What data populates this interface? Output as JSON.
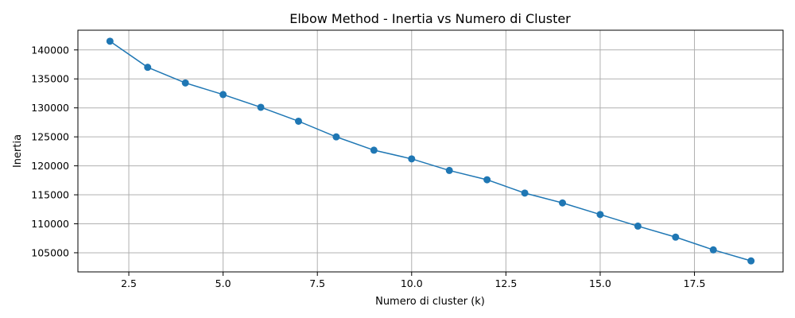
{
  "chart_data": {
    "type": "line",
    "title": "Elbow Method - Inertia vs Numero di Cluster",
    "xlabel": "Numero di cluster (k)",
    "ylabel": "Inertia",
    "x": [
      2,
      3,
      4,
      5,
      6,
      7,
      8,
      9,
      10,
      11,
      12,
      13,
      14,
      15,
      16,
      17,
      18,
      19
    ],
    "series": [
      {
        "values": [
          141500,
          137000,
          134300,
          132300,
          130100,
          127700,
          125000,
          122700,
          121200,
          119200,
          117600,
          115300,
          113600,
          111600,
          109600,
          107700,
          105500,
          103600
        ]
      }
    ],
    "xticks": [
      2.5,
      5.0,
      7.5,
      10.0,
      12.5,
      15.0,
      17.5
    ],
    "xtick_labels": [
      "2.5",
      "5.0",
      "7.5",
      "10.0",
      "12.5",
      "15.0",
      "17.5"
    ],
    "yticks": [
      105000,
      110000,
      115000,
      120000,
      125000,
      130000,
      135000,
      140000
    ],
    "ytick_labels": [
      "105000",
      "110000",
      "115000",
      "120000",
      "125000",
      "130000",
      "135000",
      "140000"
    ],
    "xlim": [
      1.15,
      19.85
    ],
    "ylim": [
      101700,
      143400
    ],
    "grid": true,
    "marker": "circle",
    "line_color": "#1f77b4"
  }
}
